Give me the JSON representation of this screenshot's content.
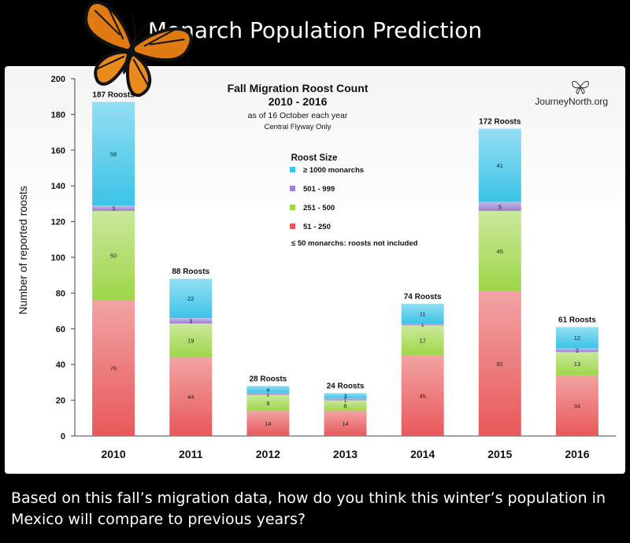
{
  "header": {
    "title": "Monarch Population Prediction"
  },
  "question": "Based on this fall’s migration data, how do you think this winter’s population in Mexico will compare to previous years?",
  "chart_data": {
    "type": "bar",
    "stacked": true,
    "title": "Fall Migration Roost Count",
    "subtitle": "2010 - 2016",
    "note1": "as of 16 October each year",
    "note2": "Central Flyway Only",
    "brand": "JourneyNorth.org",
    "xlabel": "",
    "ylabel": "Number of reported roosts",
    "ylim": [
      0,
      200
    ],
    "yticks": [
      0,
      20,
      40,
      60,
      80,
      100,
      120,
      140,
      160,
      180,
      200
    ],
    "categories": [
      "2010",
      "2011",
      "2012",
      "2013",
      "2014",
      "2015",
      "2016"
    ],
    "totals": [
      "187 Roosts",
      "88 Roosts",
      "28 Roosts",
      "24 Roosts",
      "74 Roosts",
      "172 Roosts",
      "61 Roosts"
    ],
    "legend_title": "Roost Size",
    "legend_note": "≤ 50 monarchs: roosts not included",
    "series": [
      {
        "name": "51 - 250",
        "color": "#e8585a",
        "values": [
          76,
          44,
          14,
          14,
          45,
          81,
          34
        ]
      },
      {
        "name": "251 - 500",
        "color": "#9fd64a",
        "values": [
          50,
          19,
          9,
          6,
          17,
          45,
          13
        ]
      },
      {
        "name": "501 - 999",
        "color": "#9b7fd0",
        "values": [
          3,
          3,
          1,
          1,
          1,
          5,
          2
        ]
      },
      {
        "name": "≥ 1000 monarchs",
        "color": "#3cc3e8",
        "values": [
          58,
          22,
          4,
          3,
          11,
          41,
          12
        ]
      }
    ],
    "legend_order": [
      3,
      2,
      1,
      0
    ],
    "grid": false,
    "legend_placement": "center"
  }
}
